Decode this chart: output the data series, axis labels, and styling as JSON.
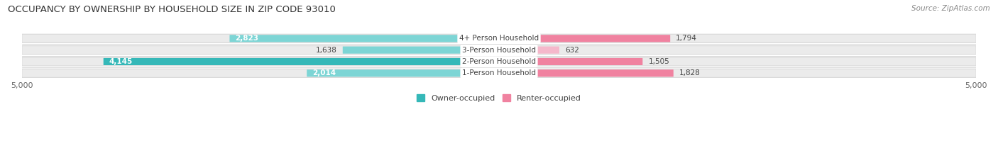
{
  "title": "OCCUPANCY BY OWNERSHIP BY HOUSEHOLD SIZE IN ZIP CODE 93010",
  "source": "Source: ZipAtlas.com",
  "categories": [
    "1-Person Household",
    "2-Person Household",
    "3-Person Household",
    "4+ Person Household"
  ],
  "owner_values": [
    2014,
    4145,
    1638,
    2823
  ],
  "renter_values": [
    1828,
    1505,
    632,
    1794
  ],
  "owner_colors": [
    "#7dd5d5",
    "#35b8b8",
    "#7dd5d5",
    "#7dd5d5"
  ],
  "renter_colors": [
    "#f082a0",
    "#f082a0",
    "#f5b8cb",
    "#f082a0"
  ],
  "bar_bg_color": "#ebebeb",
  "bar_border_color": "#d8d8d8",
  "background_color": "#ffffff",
  "axis_max": 5000,
  "title_fontsize": 9.5,
  "source_fontsize": 7.5,
  "value_fontsize": 7.5,
  "cat_fontsize": 7.5,
  "tick_fontsize": 8,
  "legend_fontsize": 8,
  "bar_height": 0.62,
  "bar_gap": 0.12
}
